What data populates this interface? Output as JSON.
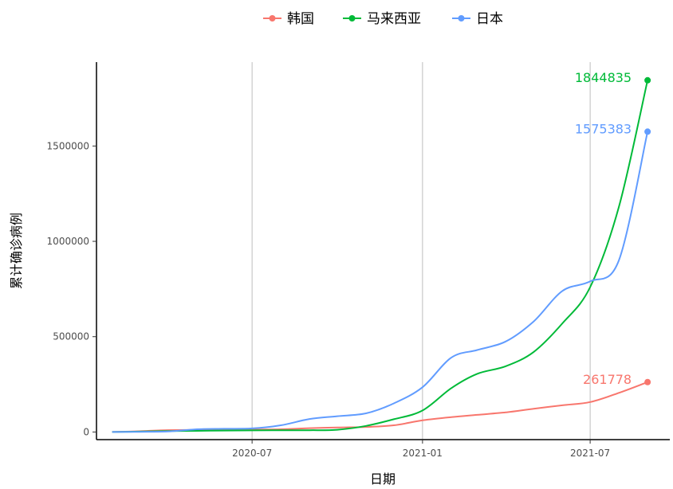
{
  "chart_data": {
    "type": "line",
    "title": "",
    "xlabel": "日期",
    "ylabel": "累计确诊病例",
    "x_tick_labels": [
      "2020-07",
      "2021-01",
      "2021-07"
    ],
    "x_ticks": [
      "2020-07-01",
      "2021-01-01",
      "2021-07-01"
    ],
    "y_tick_labels": [
      "0",
      "500000",
      "1000000",
      "1500000"
    ],
    "y_ticks": [
      0,
      500000,
      1000000,
      1500000
    ],
    "xlim": [
      "2020-01-15",
      "2021-09-25"
    ],
    "ylim": [
      -40000,
      1940000
    ],
    "grid": "vertical major lines only",
    "legend_position": "top",
    "series": [
      {
        "name": "韩国",
        "color": "#F8766D",
        "end_label": "261778",
        "points": [
          [
            "2020-02-01",
            0
          ],
          [
            "2020-03-01",
            4000
          ],
          [
            "2020-04-01",
            9900
          ],
          [
            "2020-05-01",
            10800
          ],
          [
            "2020-06-01",
            11500
          ],
          [
            "2020-07-01",
            12800
          ],
          [
            "2020-08-01",
            14300
          ],
          [
            "2020-09-01",
            20000
          ],
          [
            "2020-10-01",
            23700
          ],
          [
            "2020-11-01",
            26500
          ],
          [
            "2020-12-01",
            35000
          ],
          [
            "2021-01-01",
            61000
          ],
          [
            "2021-02-01",
            78000
          ],
          [
            "2021-03-01",
            90000
          ],
          [
            "2021-04-01",
            103000
          ],
          [
            "2021-05-01",
            122000
          ],
          [
            "2021-06-01",
            140000
          ],
          [
            "2021-07-01",
            157000
          ],
          [
            "2021-08-01",
            205000
          ],
          [
            "2021-09-01",
            261778
          ]
        ]
      },
      {
        "name": "马来西亚",
        "color": "#00BA38",
        "end_label": "1844835",
        "points": [
          [
            "2020-02-01",
            0
          ],
          [
            "2020-03-01",
            2000
          ],
          [
            "2020-04-01",
            5000
          ],
          [
            "2020-05-01",
            6000
          ],
          [
            "2020-06-01",
            7800
          ],
          [
            "2020-07-01",
            8600
          ],
          [
            "2020-08-01",
            9000
          ],
          [
            "2020-09-01",
            9400
          ],
          [
            "2020-10-01",
            12000
          ],
          [
            "2020-11-01",
            32000
          ],
          [
            "2020-12-01",
            67000
          ],
          [
            "2021-01-01",
            113000
          ],
          [
            "2021-02-01",
            230000
          ],
          [
            "2021-03-01",
            305000
          ],
          [
            "2021-04-01",
            345000
          ],
          [
            "2021-05-01",
            420000
          ],
          [
            "2021-06-01",
            570000
          ],
          [
            "2021-07-01",
            760000
          ],
          [
            "2021-08-01",
            1180000
          ],
          [
            "2021-09-01",
            1844835
          ]
        ]
      },
      {
        "name": "日本",
        "color": "#619CFF",
        "end_label": "1575383",
        "points": [
          [
            "2020-02-01",
            0
          ],
          [
            "2020-03-01",
            1000
          ],
          [
            "2020-04-01",
            2500
          ],
          [
            "2020-05-01",
            14000
          ],
          [
            "2020-06-01",
            17000
          ],
          [
            "2020-07-01",
            19000
          ],
          [
            "2020-08-01",
            35000
          ],
          [
            "2020-09-01",
            68000
          ],
          [
            "2020-10-01",
            83000
          ],
          [
            "2020-11-01",
            98000
          ],
          [
            "2020-12-01",
            150000
          ],
          [
            "2021-01-01",
            235000
          ],
          [
            "2021-02-01",
            390000
          ],
          [
            "2021-03-01",
            430000
          ],
          [
            "2021-04-01",
            475000
          ],
          [
            "2021-05-01",
            580000
          ],
          [
            "2021-06-01",
            740000
          ],
          [
            "2021-07-01",
            790000
          ],
          [
            "2021-08-01",
            900000
          ],
          [
            "2021-09-01",
            1575383
          ]
        ]
      }
    ]
  }
}
